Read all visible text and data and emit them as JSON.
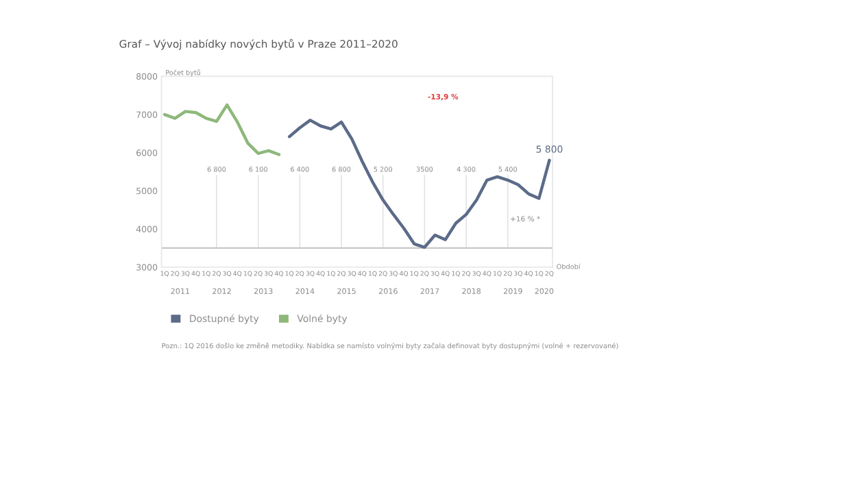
{
  "chart_data": {
    "type": "line",
    "title": "Graf – Vývoj nabídky nových bytů v Praze 2011–2020",
    "ylabel": "Počet bytů",
    "xlabel": "Období",
    "categories": [
      "1Q",
      "2Q",
      "3Q",
      "4Q",
      "1Q",
      "2Q",
      "3Q",
      "4Q",
      "1Q",
      "2Q",
      "3Q",
      "4Q",
      "1Q",
      "2Q",
      "3Q",
      "4Q",
      "1Q",
      "2Q",
      "3Q",
      "4Q",
      "1Q",
      "2Q",
      "3Q",
      "4Q",
      "1Q",
      "2Q",
      "3Q",
      "4Q",
      "1Q",
      "2Q",
      "3Q",
      "4Q",
      "1Q",
      "2Q",
      "3Q",
      "4Q",
      "1Q",
      "2Q"
    ],
    "series": [
      {
        "name": "Dostupné byty",
        "color": "#5b6b88",
        "values": [
          null,
          null,
          null,
          null,
          null,
          null,
          null,
          null,
          null,
          null,
          null,
          null,
          6420,
          6650,
          6850,
          6700,
          6620,
          6800,
          6360,
          5770,
          5230,
          4760,
          4380,
          4020,
          3610,
          3520,
          3840,
          3720,
          4150,
          4380,
          4760,
          5280,
          5370,
          5280,
          5160,
          4920,
          4800,
          5800
        ],
        "value_labels": [
          null,
          null,
          null,
          null,
          null,
          null,
          null,
          null,
          null,
          null,
          null,
          null,
          null,
          null,
          null,
          null,
          null,
          null,
          null,
          null,
          null,
          null,
          null,
          null,
          null,
          null,
          null,
          null,
          null,
          null,
          null,
          null,
          null,
          null,
          null,
          null,
          null,
          "5 800"
        ]
      },
      {
        "name": "Volné byty",
        "color": "#8db87a",
        "values": [
          7000,
          6900,
          7080,
          7050,
          6900,
          6820,
          7250,
          6800,
          6250,
          5980,
          6050,
          5950,
          null,
          null,
          null,
          null,
          null,
          null,
          null,
          null,
          null,
          null,
          null,
          null,
          null,
          null,
          null,
          null,
          null,
          null,
          null,
          null,
          null,
          null,
          null,
          null,
          null,
          null
        ]
      }
    ],
    "ylim": [
      3000,
      8000
    ],
    "yticks": [
      3000,
      4000,
      5000,
      6000,
      7000,
      8000
    ],
    "ref_lines": [
      {
        "axis": "y",
        "value": 3500,
        "color": "#c8c8c8"
      }
    ],
    "annotations": [
      "2011",
      "2012",
      "2013",
      "2014",
      "2015",
      "2016",
      "2017",
      "2018",
      "2019",
      "2020",
      {
        "text": "6 800",
        "y": 5550
      },
      {
        "text": "6 100",
        "y": 5550
      },
      {
        "text": "6 400",
        "y": 5550
      },
      {
        "text": "6 800",
        "y": 5550
      },
      {
        "text": "5 200",
        "y": 5550
      },
      {
        "text": "3500",
        "y": 5550
      },
      {
        "text": "4 300",
        "y": 5550
      },
      {
        "text": "5 400",
        "y": 5550
      },
      "-13,9 %",
      "+16 % *",
      "Pozn.: 1Q 2016 došlo ke změně metodiky. Nabídka se namísto volnými byty začala definovat byty dostupnými (volné + rezervované)"
    ],
    "legend": "bottom",
    "grid": false
  }
}
